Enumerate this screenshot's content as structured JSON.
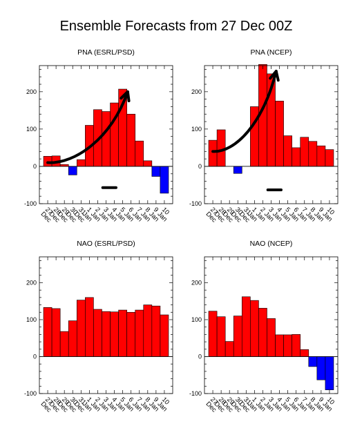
{
  "figure": {
    "title": "Ensemble Forecasts from 27 Dec 00Z"
  },
  "colors": {
    "positive": "#ff0000",
    "negative": "#0000ff",
    "outline": "#000000",
    "annotation": "#000000"
  },
  "chart_data": [
    {
      "type": "bar",
      "title": "PNA (ESRL/PSD)",
      "categories": [
        "27 Dec",
        "28 Dec",
        "29 Dec",
        "30 Dec",
        "31 Dec",
        "1 Jan",
        "2 Jan",
        "3 Jan",
        "4 Jan",
        "5 Jan",
        "6 Jan",
        "7 Jan",
        "8 Jan",
        "9 Jan",
        "10 Jan"
      ],
      "values": [
        27,
        28,
        5,
        -23,
        18,
        110,
        152,
        147,
        170,
        207,
        140,
        68,
        15,
        -27,
        -72
      ],
      "ylim": [
        -100,
        270
      ],
      "yticks": [
        -100,
        0,
        100,
        200
      ],
      "annotations": {
        "arrow": {
          "from": [
            0,
            10
          ],
          "to": [
            9.6,
            200
          ]
        },
        "dash": {
          "x": [
            6.6,
            8.2
          ],
          "y": -57
        }
      }
    },
    {
      "type": "bar",
      "title": "PNA (NCEP)",
      "categories": [
        "27 Dec",
        "28 Dec",
        "29 Dec",
        "30 Dec",
        "31 Dec",
        "1 Jan",
        "2 Jan",
        "3 Jan",
        "4 Jan",
        "5 Jan",
        "6 Jan",
        "7 Jan",
        "8 Jan",
        "9 Jan",
        "10 Jan"
      ],
      "values": [
        70,
        98,
        0,
        -19,
        0,
        160,
        273,
        248,
        175,
        82,
        50,
        78,
        67,
        55,
        45
      ],
      "ylim": [
        -100,
        270
      ],
      "yticks": [
        -100,
        0,
        100,
        200
      ],
      "annotations": {
        "arrow": {
          "from": [
            0,
            40
          ],
          "to": [
            7.6,
            255
          ]
        },
        "dash": {
          "x": [
            6.6,
            8.2
          ],
          "y": -63
        }
      }
    },
    {
      "type": "bar",
      "title": "NAO (ESRL/PSD)",
      "categories": [
        "27 Dec",
        "28 Dec",
        "29 Dec",
        "30 Dec",
        "31 Dec",
        "1 Jan",
        "2 Jan",
        "3 Jan",
        "4 Jan",
        "5 Jan",
        "6 Jan",
        "7 Jan",
        "8 Jan",
        "9 Jan",
        "10 Jan"
      ],
      "values": [
        133,
        130,
        68,
        97,
        153,
        160,
        128,
        122,
        121,
        126,
        120,
        126,
        140,
        137,
        113
      ],
      "ylim": [
        -100,
        270
      ],
      "yticks": [
        -100,
        0,
        100,
        200
      ]
    },
    {
      "type": "bar",
      "title": "NAO (NCEP)",
      "categories": [
        "27 Dec",
        "28 Dec",
        "29 Dec",
        "30 Dec",
        "31 Dec",
        "1 Jan",
        "2 Jan",
        "3 Jan",
        "4 Jan",
        "5 Jan",
        "6 Jan",
        "7 Jan",
        "8 Jan",
        "9 Jan",
        "10 Jan"
      ],
      "values": [
        123,
        108,
        41,
        110,
        162,
        152,
        131,
        103,
        59,
        59,
        60,
        19,
        -27,
        -63,
        -90
      ],
      "ylim": [
        -100,
        270
      ],
      "yticks": [
        -100,
        0,
        100,
        200
      ]
    }
  ]
}
